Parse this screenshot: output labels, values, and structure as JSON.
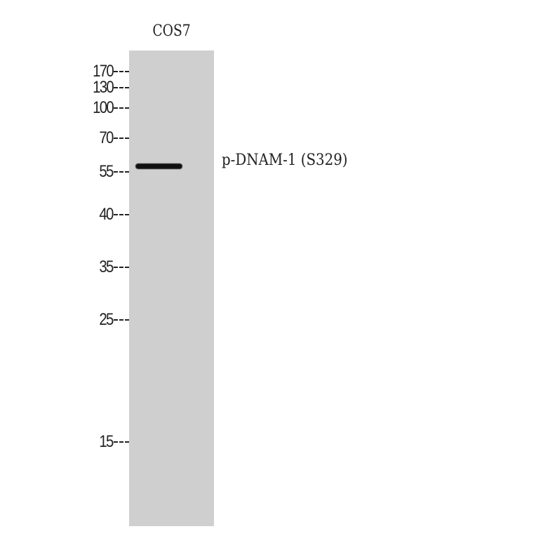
{
  "lanes": [
    {
      "label": "COS7"
    }
  ],
  "markers": [
    "170",
    "130",
    "100",
    "70",
    "55",
    "40",
    "35",
    "25",
    "15"
  ],
  "band_label": "p-DNAM-1 (S329)",
  "colors": {
    "membrane": "#cfcfcf",
    "band": "#111111",
    "background": "#ffffff"
  }
}
